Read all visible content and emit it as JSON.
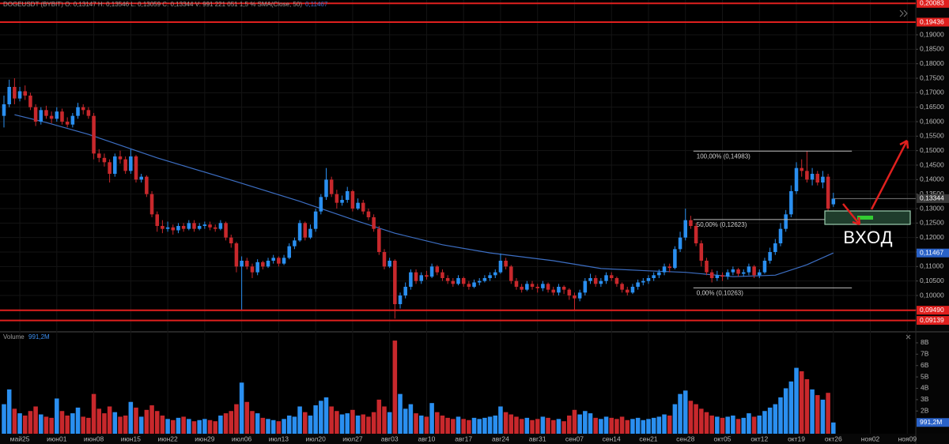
{
  "header": {
    "title": "DOGEUSDT (BYBIT) O: 0,13147 H: 0,13546 L: 0,13059 C: 0,13344 V: 991 221 051 1,5 % SMA(Close, 50)"
  },
  "chart_data": {
    "type": "candlestick",
    "up_color": "#2a8ff0",
    "down_color": "#c8282c",
    "grid": true,
    "xlim": [
      -3.75,
      169.6
    ],
    "ylim": [
      0.088,
      0.202
    ],
    "xticks": [
      {
        "value": 0,
        "label": "май25"
      },
      {
        "value": 7,
        "label": "июн01"
      },
      {
        "value": 14,
        "label": "июн08"
      },
      {
        "value": 21,
        "label": "июн15"
      },
      {
        "value": 28,
        "label": "июн22"
      },
      {
        "value": 35,
        "label": "июн29"
      },
      {
        "value": 42,
        "label": "июл06"
      },
      {
        "value": 49,
        "label": "июл13"
      },
      {
        "value": 56,
        "label": "июл20"
      },
      {
        "value": 63,
        "label": "июл27"
      },
      {
        "value": 70,
        "label": "авг03"
      },
      {
        "value": 77,
        "label": "авг10"
      },
      {
        "value": 84,
        "label": "авг17"
      },
      {
        "value": 91,
        "label": "авг24"
      },
      {
        "value": 98,
        "label": "авг31"
      },
      {
        "value": 105,
        "label": "сен07"
      },
      {
        "value": 112,
        "label": "сен14"
      },
      {
        "value": 119,
        "label": "сен21"
      },
      {
        "value": 126,
        "label": "сен28"
      },
      {
        "value": 133,
        "label": "окт05"
      },
      {
        "value": 140,
        "label": "окт12"
      },
      {
        "value": 147,
        "label": "окт19"
      },
      {
        "value": 154,
        "label": "окт26"
      },
      {
        "value": 161,
        "label": "ноя02"
      },
      {
        "value": 168,
        "label": "ноя09"
      }
    ],
    "yticks": [
      {
        "value": 0.095,
        "label": "0,09500"
      },
      {
        "value": 0.1,
        "label": "0,10000"
      },
      {
        "value": 0.105,
        "label": "0,10500"
      },
      {
        "value": 0.11,
        "label": "0,11000"
      },
      {
        "value": 0.115,
        "label": "0,11500"
      },
      {
        "value": 0.12,
        "label": "0,12000"
      },
      {
        "value": 0.125,
        "label": "0,12500"
      },
      {
        "value": 0.13,
        "label": "0,13000"
      },
      {
        "value": 0.135,
        "label": "0,13500"
      },
      {
        "value": 0.14,
        "label": "0,14000"
      },
      {
        "value": 0.145,
        "label": "0,14500"
      },
      {
        "value": 0.15,
        "label": "0,15000"
      },
      {
        "value": 0.155,
        "label": "0,15500"
      },
      {
        "value": 0.16,
        "label": "0,16000"
      },
      {
        "value": 0.165,
        "label": "0,16500"
      },
      {
        "value": 0.17,
        "label": "0,17000"
      },
      {
        "value": 0.175,
        "label": "0,17500"
      },
      {
        "value": 0.18,
        "label": "0,18000"
      },
      {
        "value": 0.185,
        "label": "0,18500"
      },
      {
        "value": 0.19,
        "label": "0,19000"
      }
    ],
    "x": [
      -3,
      -2,
      -1,
      0,
      1,
      2,
      3,
      4,
      5,
      6,
      7,
      8,
      9,
      10,
      11,
      12,
      13,
      14,
      15,
      16,
      17,
      18,
      19,
      20,
      21,
      22,
      23,
      24,
      25,
      26,
      27,
      28,
      29,
      30,
      31,
      32,
      33,
      34,
      35,
      36,
      37,
      38,
      39,
      40,
      41,
      42,
      43,
      44,
      45,
      46,
      47,
      48,
      49,
      50,
      51,
      52,
      53,
      54,
      55,
      56,
      57,
      58,
      59,
      60,
      61,
      62,
      63,
      64,
      65,
      66,
      67,
      68,
      69,
      70,
      71,
      72,
      73,
      74,
      75,
      76,
      77,
      78,
      79,
      80,
      81,
      82,
      83,
      84,
      85,
      86,
      87,
      88,
      89,
      90,
      91,
      92,
      93,
      94,
      95,
      96,
      97,
      98,
      99,
      100,
      101,
      102,
      103,
      104,
      105,
      106,
      107,
      108,
      109,
      110,
      111,
      112,
      113,
      114,
      115,
      116,
      117,
      118,
      119,
      120,
      121,
      122,
      123,
      124,
      125,
      126,
      127,
      128,
      129,
      130,
      131,
      132,
      133,
      134,
      135,
      136,
      137,
      138,
      139,
      140,
      141,
      142,
      143,
      144,
      145,
      146,
      147,
      148,
      149,
      150,
      151,
      152,
      153,
      154
    ],
    "open": [
      0.162,
      0.166,
      0.172,
      0.168,
      0.1705,
      0.169,
      0.165,
      0.16,
      0.164,
      0.162,
      0.161,
      0.1635,
      0.16,
      0.159,
      0.162,
      0.165,
      0.164,
      0.162,
      0.149,
      0.1475,
      0.146,
      0.142,
      0.148,
      0.147,
      0.143,
      0.148,
      0.14,
      0.141,
      0.135,
      0.128,
      0.124,
      0.123,
      0.1235,
      0.1225,
      0.124,
      0.123,
      0.125,
      0.123,
      0.124,
      0.1245,
      0.1235,
      0.123,
      0.125,
      0.12,
      0.118,
      0.11,
      0.112,
      0.11,
      0.108,
      0.1115,
      0.11,
      0.112,
      0.113,
      0.111,
      0.113,
      0.117,
      0.119,
      0.125,
      0.12,
      0.123,
      0.129,
      0.134,
      0.14,
      0.135,
      0.132,
      0.133,
      0.136,
      0.13,
      0.132,
      0.129,
      0.127,
      0.123,
      0.115,
      0.11,
      0.112,
      0.097,
      0.1,
      0.103,
      0.108,
      0.105,
      0.107,
      0.1065,
      0.11,
      0.108,
      0.106,
      0.105,
      0.104,
      0.106,
      0.104,
      0.103,
      0.1045,
      0.105,
      0.106,
      0.107,
      0.108,
      0.112,
      0.11,
      0.105,
      0.103,
      0.102,
      0.104,
      0.103,
      0.1025,
      0.104,
      0.102,
      0.101,
      0.103,
      0.102,
      0.1,
      0.099,
      0.101,
      0.105,
      0.106,
      0.104,
      0.105,
      0.107,
      0.106,
      0.104,
      0.102,
      0.101,
      0.103,
      0.1045,
      0.105,
      0.106,
      0.107,
      0.108,
      0.11,
      0.1095,
      0.116,
      0.12,
      0.126,
      0.124,
      0.118,
      0.112,
      0.108,
      0.106,
      0.107,
      0.1065,
      0.108,
      0.109,
      0.1075,
      0.108,
      0.11,
      0.107,
      0.108,
      0.112,
      0.115,
      0.118,
      0.123,
      0.128,
      0.136,
      0.144,
      0.143,
      0.14,
      0.142,
      0.139,
      0.141,
      0.13147
    ],
    "high": [
      0.169,
      0.1745,
      0.175,
      0.172,
      0.1725,
      0.17,
      0.166,
      0.165,
      0.1655,
      0.1635,
      0.165,
      0.1645,
      0.1615,
      0.163,
      0.1665,
      0.166,
      0.165,
      0.163,
      0.1505,
      0.149,
      0.147,
      0.149,
      0.15,
      0.148,
      0.1505,
      0.1485,
      0.142,
      0.1415,
      0.136,
      0.129,
      0.126,
      0.1255,
      0.1245,
      0.125,
      0.125,
      0.126,
      0.126,
      0.125,
      0.1255,
      0.1255,
      0.1245,
      0.126,
      0.1255,
      0.121,
      0.1185,
      0.1135,
      0.113,
      0.111,
      0.1125,
      0.112,
      0.113,
      0.114,
      0.1135,
      0.114,
      0.118,
      0.12,
      0.126,
      0.1255,
      0.1245,
      0.13,
      0.135,
      0.144,
      0.141,
      0.1365,
      0.1345,
      0.1375,
      0.1365,
      0.1335,
      0.133,
      0.13,
      0.128,
      0.124,
      0.116,
      0.113,
      0.1125,
      0.101,
      0.1045,
      0.109,
      0.109,
      0.108,
      0.1085,
      0.111,
      0.1105,
      0.109,
      0.107,
      0.106,
      0.107,
      0.1065,
      0.105,
      0.1055,
      0.106,
      0.107,
      0.108,
      0.109,
      0.1145,
      0.113,
      0.1105,
      0.106,
      0.104,
      0.105,
      0.105,
      0.104,
      0.105,
      0.1045,
      0.103,
      0.104,
      0.1035,
      0.1025,
      0.101,
      0.102,
      0.106,
      0.1075,
      0.107,
      0.106,
      0.108,
      0.108,
      0.1065,
      0.1045,
      0.103,
      0.104,
      0.1055,
      0.106,
      0.107,
      0.108,
      0.109,
      0.111,
      0.111,
      0.117,
      0.122,
      0.13,
      0.1275,
      0.125,
      0.119,
      0.113,
      0.109,
      0.1085,
      0.108,
      0.109,
      0.11,
      0.1095,
      0.109,
      0.111,
      0.1105,
      0.109,
      0.113,
      0.1165,
      0.1195,
      0.125,
      0.1295,
      0.138,
      0.146,
      0.147,
      0.1498,
      0.144,
      0.143,
      0.143,
      0.142,
      0.13546
    ],
    "low": [
      0.158,
      0.165,
      0.166,
      0.167,
      0.1675,
      0.164,
      0.1585,
      0.159,
      0.161,
      0.1595,
      0.16,
      0.159,
      0.158,
      0.158,
      0.161,
      0.1625,
      0.161,
      0.147,
      0.146,
      0.1445,
      0.139,
      0.141,
      0.1455,
      0.142,
      0.142,
      0.139,
      0.139,
      0.134,
      0.127,
      0.122,
      0.1215,
      0.122,
      0.121,
      0.1215,
      0.122,
      0.1225,
      0.122,
      0.1225,
      0.123,
      0.1225,
      0.122,
      0.1225,
      0.119,
      0.1165,
      0.108,
      0.095,
      0.109,
      0.106,
      0.107,
      0.109,
      0.1095,
      0.111,
      0.11,
      0.1105,
      0.1125,
      0.116,
      0.1185,
      0.119,
      0.1195,
      0.122,
      0.128,
      0.133,
      0.134,
      0.13,
      0.131,
      0.132,
      0.129,
      0.1295,
      0.128,
      0.126,
      0.122,
      0.114,
      0.109,
      0.1095,
      0.092,
      0.0955,
      0.099,
      0.102,
      0.104,
      0.104,
      0.1055,
      0.106,
      0.107,
      0.105,
      0.104,
      0.103,
      0.1035,
      0.103,
      0.102,
      0.1025,
      0.1035,
      0.1045,
      0.105,
      0.106,
      0.1075,
      0.109,
      0.104,
      0.102,
      0.101,
      0.1015,
      0.102,
      0.101,
      0.1015,
      0.101,
      0.1,
      0.1,
      0.1005,
      0.0985,
      0.095,
      0.098,
      0.1,
      0.104,
      0.103,
      0.103,
      0.104,
      0.105,
      0.103,
      0.101,
      0.1,
      0.1005,
      0.102,
      0.1035,
      0.104,
      0.105,
      0.106,
      0.107,
      0.108,
      0.109,
      0.115,
      0.119,
      0.123,
      0.117,
      0.11,
      0.107,
      0.1045,
      0.105,
      0.105,
      0.1055,
      0.107,
      0.1065,
      0.1065,
      0.107,
      0.106,
      0.106,
      0.1075,
      0.111,
      0.114,
      0.117,
      0.122,
      0.127,
      0.135,
      0.141,
      0.139,
      0.138,
      0.138,
      0.137,
      0.129,
      0.13059
    ],
    "close": [
      0.166,
      0.172,
      0.168,
      0.1705,
      0.169,
      0.165,
      0.16,
      0.164,
      0.162,
      0.161,
      0.1635,
      0.16,
      0.159,
      0.162,
      0.165,
      0.164,
      0.162,
      0.149,
      0.1475,
      0.146,
      0.142,
      0.148,
      0.147,
      0.143,
      0.148,
      0.14,
      0.141,
      0.135,
      0.128,
      0.124,
      0.123,
      0.1235,
      0.1225,
      0.124,
      0.123,
      0.125,
      0.123,
      0.124,
      0.1245,
      0.1235,
      0.123,
      0.125,
      0.12,
      0.118,
      0.11,
      0.112,
      0.11,
      0.108,
      0.1115,
      0.11,
      0.112,
      0.113,
      0.111,
      0.113,
      0.117,
      0.119,
      0.125,
      0.12,
      0.123,
      0.129,
      0.134,
      0.14,
      0.135,
      0.132,
      0.133,
      0.136,
      0.13,
      0.132,
      0.129,
      0.127,
      0.123,
      0.115,
      0.11,
      0.112,
      0.097,
      0.1,
      0.103,
      0.108,
      0.105,
      0.107,
      0.1065,
      0.11,
      0.108,
      0.106,
      0.105,
      0.104,
      0.106,
      0.104,
      0.103,
      0.1045,
      0.105,
      0.106,
      0.107,
      0.108,
      0.112,
      0.11,
      0.105,
      0.103,
      0.102,
      0.104,
      0.103,
      0.1025,
      0.104,
      0.102,
      0.101,
      0.103,
      0.102,
      0.1,
      0.099,
      0.101,
      0.105,
      0.106,
      0.104,
      0.105,
      0.107,
      0.106,
      0.104,
      0.102,
      0.101,
      0.103,
      0.1045,
      0.105,
      0.106,
      0.107,
      0.108,
      0.11,
      0.1095,
      0.116,
      0.12,
      0.126,
      0.124,
      0.118,
      0.112,
      0.108,
      0.106,
      0.107,
      0.1065,
      0.108,
      0.109,
      0.1075,
      0.108,
      0.11,
      0.107,
      0.108,
      0.112,
      0.115,
      0.118,
      0.123,
      0.128,
      0.136,
      0.144,
      0.143,
      0.14,
      0.142,
      0.139,
      0.141,
      0.13,
      0.13344
    ],
    "close_label": "0,13344",
    "sma": {
      "color": "#3d6fc4",
      "label": "0,11467",
      "x": [
        -1,
        5,
        13,
        26,
        41,
        53,
        64,
        71,
        80,
        89,
        101,
        110,
        119,
        126,
        135,
        143,
        149,
        154
      ],
      "values": [
        0.1624,
        0.1597,
        0.1556,
        0.1475,
        0.1393,
        0.1325,
        0.1256,
        0.1215,
        0.1175,
        0.1147,
        0.112,
        0.1093,
        0.1085,
        0.108,
        0.1065,
        0.107,
        0.1106,
        0.11467
      ]
    },
    "levels": [
      {
        "value": 0.20083,
        "label": "0,20083",
        "color": "#e0201e"
      },
      {
        "value": 0.19436,
        "label": "0,19436",
        "color": "#e0201e"
      },
      {
        "value": 0.0949,
        "label": "0,09490",
        "color": "#e0201e"
      },
      {
        "value": 0.09139,
        "label": "0,09139",
        "color": "#e0201e"
      }
    ],
    "fib": [
      {
        "value": 0.14983,
        "label": "100,00% (0,14983)"
      },
      {
        "value": 0.12623,
        "label": "50,00% (0,12623)"
      },
      {
        "value": 0.10263,
        "label": "0,00% (0,10263)"
      }
    ],
    "annotation": "ВХОД",
    "volume": {
      "title": "Volume",
      "value_label": "991,2M",
      "ylim": [
        0,
        8900000000.0
      ],
      "yticks": [
        {
          "value": 2000000000.0,
          "label": "2B"
        },
        {
          "value": 3000000000.0,
          "label": "3B"
        },
        {
          "value": 4000000000.0,
          "label": "4B"
        },
        {
          "value": 5000000000.0,
          "label": "5B"
        },
        {
          "value": 6000000000.0,
          "label": "6B"
        },
        {
          "value": 7000000000.0,
          "label": "7B"
        },
        {
          "value": 8000000000.0,
          "label": "8B"
        }
      ],
      "values": [
        2600000000.0,
        3900000000.0,
        2200000000.0,
        1800000000.0,
        1600000000.0,
        2000000000.0,
        2400000000.0,
        1700000000.0,
        1500000000.0,
        1400000000.0,
        3100000000.0,
        2000000000.0,
        1600000000.0,
        1800000000.0,
        2300000000.0,
        1500000000.0,
        1400000000.0,
        3500000000.0,
        2200000000.0,
        1800000000.0,
        2400000000.0,
        1900000000.0,
        1500000000.0,
        1600000000.0,
        2800000000.0,
        2300000000.0,
        1500000000.0,
        2100000000.0,
        2500000000.0,
        2000000000.0,
        1600000000.0,
        1300000000.0,
        1200000000.0,
        1400000000.0,
        1500000000.0,
        1300000000.0,
        1100000000.0,
        1200000000.0,
        1300000000.0,
        1200000000.0,
        1100000000.0,
        1600000000.0,
        1800000000.0,
        2000000000.0,
        2600000000.0,
        4500000000.0,
        2800000000.0,
        2000000000.0,
        1800000000.0,
        1400000000.0,
        1300000000.0,
        1200000000.0,
        1100000000.0,
        1300000000.0,
        1600000000.0,
        1500000000.0,
        2400000000.0,
        1900000000.0,
        1600000000.0,
        2500000000.0,
        2900000000.0,
        3200000000.0,
        2400000000.0,
        2000000000.0,
        1700000000.0,
        1800000000.0,
        2100000000.0,
        1600000000.0,
        1700000000.0,
        1500000000.0,
        1900000000.0,
        3000000000.0,
        2400000000.0,
        1900000000.0,
        8200000000.0,
        3500000000.0,
        2200000000.0,
        2600000000.0,
        1800000000.0,
        1600000000.0,
        1500000000.0,
        2700000000.0,
        1900000000.0,
        1600000000.0,
        1400000000.0,
        1300000000.0,
        1500000000.0,
        1300000000.0,
        1200000000.0,
        1400000000.0,
        1300000000.0,
        1400000000.0,
        1500000000.0,
        1600000000.0,
        2400000000.0,
        1900000000.0,
        1700000000.0,
        1500000000.0,
        1300000000.0,
        1400000000.0,
        1200000000.0,
        1300000000.0,
        1500000000.0,
        1400000000.0,
        1200000000.0,
        1300000000.0,
        1100000000.0,
        1600000000.0,
        2100000000.0,
        1700000000.0,
        2000000000.0,
        1800000000.0,
        1400000000.0,
        1300000000.0,
        1500000000.0,
        1400000000.0,
        1300000000.0,
        1500000000.0,
        1200000000.0,
        1300000000.0,
        1400000000.0,
        1200000000.0,
        1300000000.0,
        1400000000.0,
        1500000000.0,
        1700000000.0,
        1600000000.0,
        2600000000.0,
        3500000000.0,
        3800000000.0,
        2900000000.0,
        2600000000.0,
        2200000000.0,
        1900000000.0,
        1600000000.0,
        1500000000.0,
        1400000000.0,
        1500000000.0,
        1600000000.0,
        1300000000.0,
        1400000000.0,
        1800000000.0,
        1500000000.0,
        1600000000.0,
        2000000000.0,
        2300000000.0,
        2600000000.0,
        3200000000.0,
        4000000000.0,
        4600000000.0,
        5800000000.0,
        5500000000.0,
        4800000000.0,
        3900000000.0,
        3400000000.0,
        3000000000.0,
        3600000000.0,
        991221051
      ]
    }
  }
}
